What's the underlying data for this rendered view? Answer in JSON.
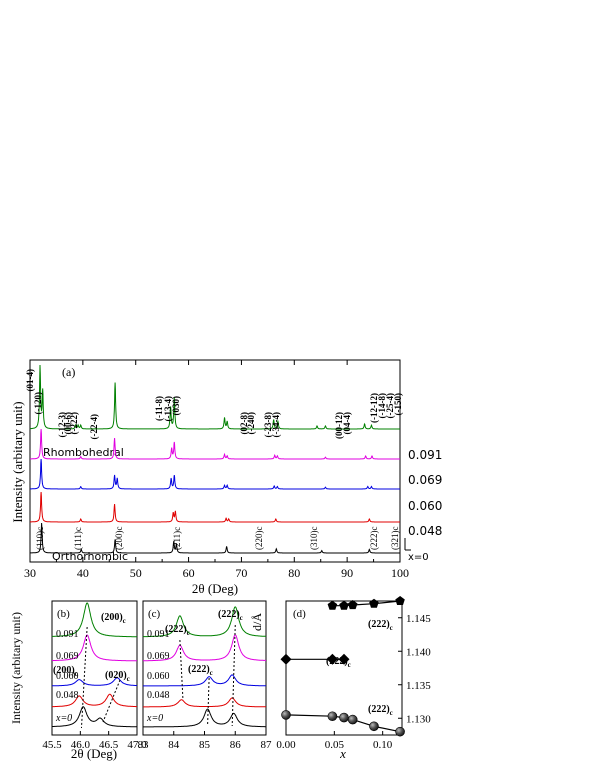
{
  "colors": {
    "x0": "#000000",
    "x048": "#e00000",
    "x060": "#0000e0",
    "x069": "#e000e0",
    "x091": "#008000",
    "axis": "#000000"
  },
  "panel_a": {
    "label": "(a)",
    "ylabel": "Intensity (arbitary unit)",
    "xlabel": "2θ (Deg)",
    "rhombohedral_label": "Rhombohedral",
    "orthorhombic_label": "Orthorhombic",
    "rhombo_peaks": [
      "(01-4)",
      "(-120)",
      "(-12-3)",
      "(00-6)",
      "(-222)",
      "(-22-4)",
      "(-11-8)",
      "(-13-4)",
      "(030)",
      "(02-8)",
      "(-240)",
      "(-23-8)",
      "(-34-4)",
      "(00-12)",
      "(04-4)",
      "(-12-12)",
      "(-14-8)",
      "(-25-4)",
      "(-150)"
    ],
    "ortho_peaks": [
      "(110)c",
      "(111)c",
      "(200)c",
      "(211)c",
      "(220)c",
      "(310)c",
      "(222)c",
      "(321)c"
    ]
  },
  "panel_b": {
    "label": "(b)",
    "ylabel": "Intensity (arbitary unit)",
    "xlabel": "2θ (Deg)",
    "ann_200_top": "(200)",
    "ann_200_left": "(200)",
    "ann_020": "(020)",
    "sub": "c"
  },
  "panel_c": {
    "label": "(c)",
    "ann_222": "(222)",
    "ann_222bar": "(222)",
    "sub": "c"
  },
  "panel_d": {
    "label": "(d)",
    "ylabel": "d/Å",
    "xlabel": "x",
    "ann_top": "(222)",
    "ann_mid": "(222)",
    "ann_bot": "(222)",
    "sub": "c"
  },
  "chart_data": [
    {
      "type": "line",
      "panel": "a",
      "xlabel": "2θ (Deg)",
      "ylabel": "Intensity (arbitary unit)",
      "xlim": [
        30,
        100
      ],
      "xticks": [
        30,
        40,
        50,
        60,
        70,
        80,
        90,
        100
      ],
      "series": [
        {
          "name": "x=0",
          "peaks": [
            [
              32.2,
              1.0
            ],
            [
              39.7,
              0.12
            ],
            [
              46.1,
              0.45
            ],
            [
              57.2,
              0.38
            ],
            [
              57.7,
              0.3
            ],
            [
              67.2,
              0.22
            ],
            [
              76.6,
              0.14
            ],
            [
              85.2,
              0.08
            ],
            [
              94.2,
              0.12
            ]
          ]
        },
        {
          "name": "0.048",
          "peaks": [
            [
              32.1,
              1.0
            ],
            [
              39.6,
              0.1
            ],
            [
              46.0,
              0.6
            ],
            [
              57.1,
              0.3
            ],
            [
              57.5,
              0.35
            ],
            [
              67.1,
              0.12
            ],
            [
              67.6,
              0.1
            ],
            [
              76.5,
              0.1
            ],
            [
              94.2,
              0.1
            ]
          ]
        },
        {
          "name": "0.060",
          "peaks": [
            [
              32.1,
              1.0
            ],
            [
              39.6,
              0.08
            ],
            [
              46.0,
              0.45
            ],
            [
              46.5,
              0.35
            ],
            [
              56.7,
              0.35
            ],
            [
              57.3,
              0.45
            ],
            [
              66.8,
              0.12
            ],
            [
              67.3,
              0.12
            ],
            [
              76.2,
              0.1
            ],
            [
              76.8,
              0.08
            ],
            [
              85.9,
              0.06
            ],
            [
              93.9,
              0.08
            ],
            [
              94.6,
              0.08
            ]
          ]
        },
        {
          "name": "0.069",
          "peaks": [
            [
              32.1,
              1.0
            ],
            [
              39.6,
              0.08
            ],
            [
              46.0,
              0.7
            ],
            [
              56.8,
              0.35
            ],
            [
              57.3,
              0.55
            ],
            [
              66.8,
              0.15
            ],
            [
              67.3,
              0.1
            ],
            [
              76.3,
              0.12
            ],
            [
              76.8,
              0.1
            ],
            [
              85.9,
              0.06
            ],
            [
              93.5,
              0.1
            ],
            [
              94.7,
              0.1
            ]
          ]
        },
        {
          "name": "0.091",
          "peaks": [
            [
              31.9,
              1.0
            ],
            [
              32.4,
              0.6
            ],
            [
              38.6,
              0.06
            ],
            [
              39.1,
              0.06
            ],
            [
              39.6,
              0.06
            ],
            [
              46.1,
              0.75
            ],
            [
              56.6,
              0.35
            ],
            [
              57.3,
              0.5
            ],
            [
              66.8,
              0.18
            ],
            [
              67.3,
              0.12
            ],
            [
              76.1,
              0.15
            ],
            [
              76.9,
              0.12
            ],
            [
              84.3,
              0.05
            ],
            [
              85.9,
              0.05
            ],
            [
              93.3,
              0.08
            ],
            [
              94.6,
              0.06
            ]
          ]
        }
      ]
    },
    {
      "type": "line",
      "panel": "b",
      "xlabel": "2θ (Deg)",
      "xlim": [
        45.5,
        47.0
      ],
      "xticks": [
        45.5,
        46.0,
        46.5,
        47.0
      ],
      "series": [
        {
          "name": "x=0",
          "peaks": [
            [
              46.05,
              0.9
            ],
            [
              46.35,
              0.35
            ]
          ]
        },
        {
          "name": "0.048",
          "peaks": [
            [
              45.98,
              0.6
            ],
            [
              46.52,
              0.7
            ]
          ]
        },
        {
          "name": "0.060",
          "peaks": [
            [
              45.98,
              0.35
            ],
            [
              46.65,
              0.45
            ]
          ]
        },
        {
          "name": "0.069",
          "peaks": [
            [
              46.12,
              1.0
            ]
          ]
        },
        {
          "name": "0.091",
          "peaks": [
            [
              46.12,
              1.0
            ]
          ]
        }
      ]
    },
    {
      "type": "line",
      "panel": "c",
      "xlim": [
        83,
        87
      ],
      "xticks": [
        83,
        84,
        85,
        86,
        87
      ],
      "series": [
        {
          "name": "x=0",
          "peaks": [
            [
              85.1,
              0.8
            ],
            [
              85.95,
              0.6
            ]
          ]
        },
        {
          "name": "0.048",
          "peaks": [
            [
              84.25,
              0.4
            ],
            [
              85.9,
              0.5
            ]
          ]
        },
        {
          "name": "0.060",
          "peaks": [
            [
              85.15,
              0.5
            ],
            [
              85.9,
              0.6
            ]
          ]
        },
        {
          "name": "0.069",
          "peaks": [
            [
              84.2,
              0.6
            ],
            [
              86.0,
              1.0
            ]
          ]
        },
        {
          "name": "0.091",
          "peaks": [
            [
              84.2,
              0.7
            ],
            [
              86.0,
              1.0
            ]
          ]
        }
      ]
    },
    {
      "type": "scatter",
      "panel": "d",
      "xlabel": "x",
      "ylabel": "d/Å",
      "xlim": [
        0.0,
        0.12
      ],
      "ylim": [
        1.1275,
        1.1475
      ],
      "xticks": [
        0.0,
        0.05,
        0.1
      ],
      "yticks": [
        1.13,
        1.135,
        1.14,
        1.145
      ],
      "series": [
        {
          "marker": "pentagon",
          "x": [
            0.048,
            0.06,
            0.069,
            0.091,
            0.118
          ],
          "y": [
            1.1468,
            1.1468,
            1.1469,
            1.1471,
            1.1475
          ]
        },
        {
          "marker": "diamond",
          "x": [
            0.0,
            0.048,
            0.06
          ],
          "y": [
            1.1388,
            1.1388,
            1.1388
          ]
        },
        {
          "marker": "sphere",
          "x": [
            0.0,
            0.048,
            0.06,
            0.069,
            0.091,
            0.118
          ],
          "y": [
            1.1305,
            1.1303,
            1.1301,
            1.1298,
            1.1288,
            1.128
          ]
        }
      ]
    }
  ]
}
